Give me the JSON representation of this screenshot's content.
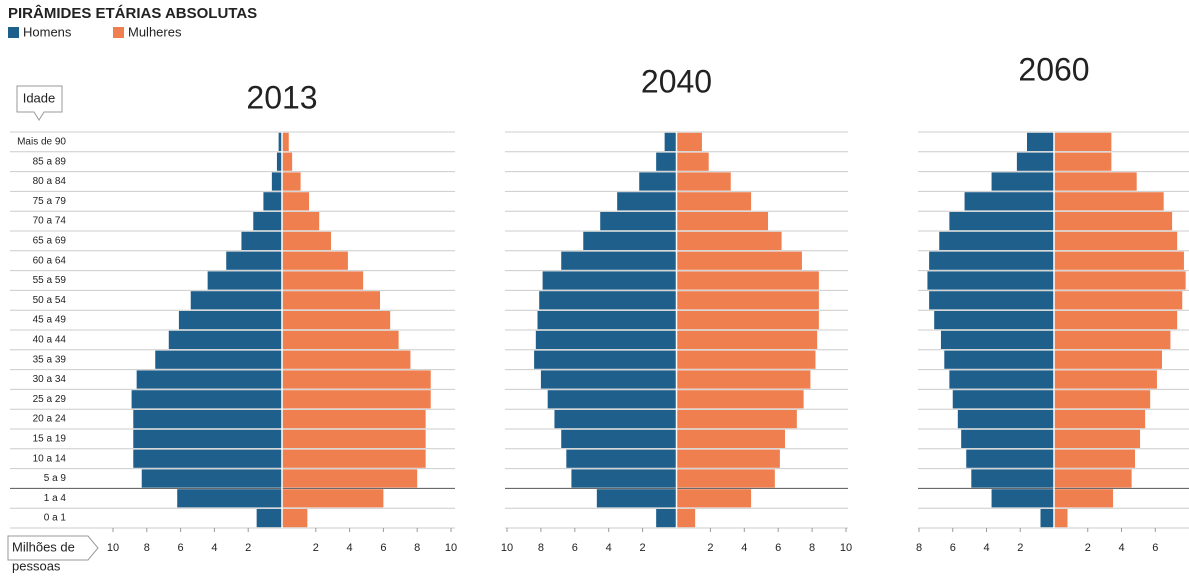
{
  "title": "PIRÂMIDES ETÁRIAS ABSOLUTAS",
  "legend": [
    {
      "name": "Homens",
      "color": "#1f5f8b"
    },
    {
      "name": "Mulheres",
      "color": "#f07f4f"
    }
  ],
  "age_label": "Idade",
  "axis_label": [
    "Milhões de",
    "pessoas"
  ],
  "categories": [
    "Mais de 90",
    "85 a 89",
    "80 a 84",
    "75 a 79",
    "70 a 74",
    "65 a 69",
    "60 a 64",
    "55 a 59",
    "50 a 54",
    "45 a 49",
    "40 a 44",
    "35 a 39",
    "30 a 34",
    "25 a 29",
    "20 a 24",
    "15 a 19",
    "10 a 14",
    "5 a 9",
    "1 a 4",
    "0 a 1"
  ],
  "chart_data": [
    {
      "type": "bar",
      "title": "2013",
      "xlim": [
        -10,
        10
      ],
      "xticks": [
        {
          "value": -10,
          "label": "10"
        },
        {
          "value": -8,
          "label": "8"
        },
        {
          "value": -6,
          "label": "6"
        },
        {
          "value": -4,
          "label": "4"
        },
        {
          "value": -2,
          "label": "2"
        },
        2,
        4,
        6,
        8,
        10
      ],
      "series": [
        {
          "values": [
            0.2,
            0.3,
            0.6,
            1.1,
            1.7,
            2.4,
            3.3,
            4.4,
            5.4,
            6.1,
            6.7,
            7.5,
            8.6,
            8.9,
            8.8,
            8.8,
            8.8,
            8.3,
            6.2,
            1.5
          ]
        },
        {
          "values": [
            0.4,
            0.6,
            1.1,
            1.6,
            2.2,
            2.9,
            3.9,
            4.8,
            5.8,
            6.4,
            6.9,
            7.6,
            8.8,
            8.8,
            8.5,
            8.5,
            8.5,
            8.0,
            6.0,
            1.5
          ]
        }
      ]
    },
    {
      "type": "bar",
      "title": "2040",
      "xlim": [
        -10,
        10
      ],
      "xticks": [
        {
          "value": -10,
          "label": "10"
        },
        {
          "value": -8,
          "label": "8"
        },
        {
          "value": -6,
          "label": "6"
        },
        {
          "value": -4,
          "label": "4"
        },
        {
          "value": -2,
          "label": "2"
        },
        2,
        4,
        6,
        8,
        10
      ],
      "series": [
        {
          "values": [
            0.7,
            1.2,
            2.2,
            3.5,
            4.5,
            5.5,
            6.8,
            7.9,
            8.1,
            8.2,
            8.3,
            8.4,
            8.0,
            7.6,
            7.2,
            6.8,
            6.5,
            6.2,
            4.7,
            1.2
          ]
        },
        {
          "values": [
            1.5,
            1.9,
            3.2,
            4.4,
            5.4,
            6.2,
            7.4,
            8.4,
            8.4,
            8.4,
            8.3,
            8.2,
            7.9,
            7.5,
            7.1,
            6.4,
            6.1,
            5.8,
            4.4,
            1.1
          ]
        }
      ]
    },
    {
      "type": "bar",
      "title": "2060",
      "xlim": [
        -8,
        8
      ],
      "xticks": [
        {
          "value": -8,
          "label": "8"
        },
        {
          "value": -6,
          "label": "6"
        },
        {
          "value": -4,
          "label": "4"
        },
        {
          "value": -2,
          "label": "2"
        },
        2,
        4,
        6
      ],
      "series": [
        {
          "values": [
            1.6,
            2.2,
            3.7,
            5.3,
            6.2,
            6.8,
            7.4,
            7.5,
            7.4,
            7.1,
            6.7,
            6.5,
            6.2,
            6.0,
            5.7,
            5.5,
            5.2,
            4.9,
            3.7,
            0.8
          ]
        },
        {
          "values": [
            3.4,
            3.4,
            4.9,
            6.5,
            7.0,
            7.3,
            7.7,
            7.8,
            7.6,
            7.3,
            6.9,
            6.4,
            6.1,
            5.7,
            5.4,
            5.1,
            4.8,
            4.6,
            3.5,
            0.8
          ]
        }
      ]
    }
  ]
}
